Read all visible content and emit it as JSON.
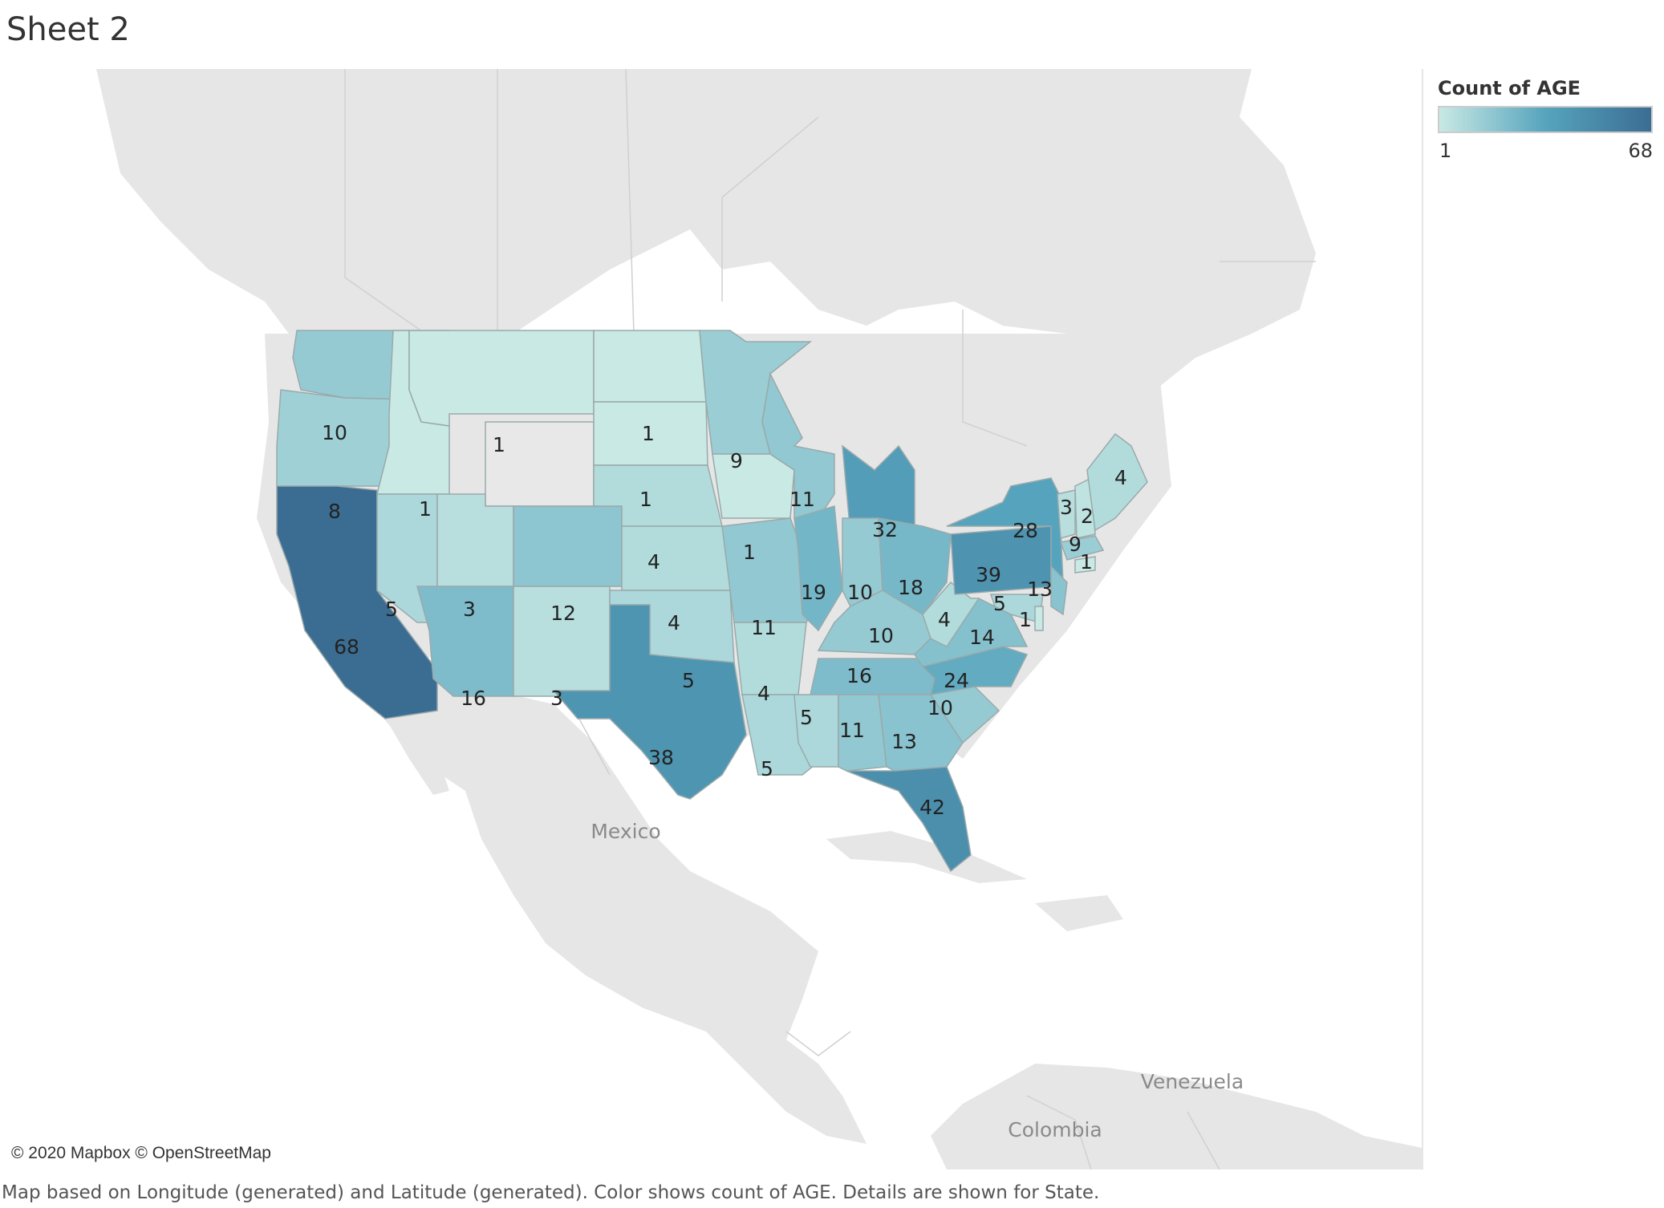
{
  "sheet_title": "Sheet 2",
  "legend": {
    "title": "Count of AGE",
    "min": "1",
    "max": "68",
    "colors": [
      "#c8e9e4",
      "#56a4bd",
      "#3b6d93"
    ]
  },
  "map": {
    "attribution": "© 2020 Mapbox © OpenStreetMap",
    "places": [
      "Mexico",
      "Venezuela",
      "Colombia"
    ],
    "land_color": "#e6e6e6",
    "no_data_color": "#e8e8e8",
    "states": [
      {
        "id": "washington",
        "value": 10
      },
      {
        "id": "oregon",
        "value": 8
      },
      {
        "id": "california",
        "value": 68
      },
      {
        "id": "idaho",
        "value": 1
      },
      {
        "id": "nevada",
        "value": 5
      },
      {
        "id": "montana",
        "value": 1
      },
      {
        "id": "wyoming",
        "value": null
      },
      {
        "id": "utah",
        "value": 3
      },
      {
        "id": "arizona",
        "value": 16
      },
      {
        "id": "colorado",
        "value": 12
      },
      {
        "id": "new-mexico",
        "value": 3
      },
      {
        "id": "north-dakota",
        "value": 1
      },
      {
        "id": "south-dakota",
        "value": 1
      },
      {
        "id": "nebraska",
        "value": 4
      },
      {
        "id": "kansas",
        "value": 4
      },
      {
        "id": "oklahoma",
        "value": 5
      },
      {
        "id": "texas",
        "value": 38
      },
      {
        "id": "minnesota",
        "value": 9
      },
      {
        "id": "iowa",
        "value": 1
      },
      {
        "id": "missouri",
        "value": 11
      },
      {
        "id": "arkansas",
        "value": 4
      },
      {
        "id": "louisiana",
        "value": 5
      },
      {
        "id": "wisconsin",
        "value": 11
      },
      {
        "id": "illinois",
        "value": 19
      },
      {
        "id": "michigan",
        "value": 32
      },
      {
        "id": "indiana",
        "value": 10
      },
      {
        "id": "ohio",
        "value": 18
      },
      {
        "id": "kentucky",
        "value": 10
      },
      {
        "id": "tennessee",
        "value": 16
      },
      {
        "id": "mississippi",
        "value": 5
      },
      {
        "id": "alabama",
        "value": 11
      },
      {
        "id": "georgia",
        "value": 13
      },
      {
        "id": "florida",
        "value": 42
      },
      {
        "id": "south-carolina",
        "value": 10
      },
      {
        "id": "north-carolina",
        "value": 24
      },
      {
        "id": "virginia",
        "value": 14
      },
      {
        "id": "west-virginia",
        "value": 4
      },
      {
        "id": "pennsylvania",
        "value": 39
      },
      {
        "id": "new-york",
        "value": 28
      },
      {
        "id": "new-jersey",
        "value": 13
      },
      {
        "id": "maryland",
        "value": 5
      },
      {
        "id": "delaware",
        "value": 1
      },
      {
        "id": "vermont",
        "value": 3
      },
      {
        "id": "new-hampshire",
        "value": 2
      },
      {
        "id": "maine",
        "value": 4
      },
      {
        "id": "massachusetts",
        "value": 9
      },
      {
        "id": "rhode-island",
        "value": 1
      }
    ]
  },
  "footer": "Map based on Longitude (generated) and Latitude (generated).  Color shows count of AGE.  Details are shown for State."
}
